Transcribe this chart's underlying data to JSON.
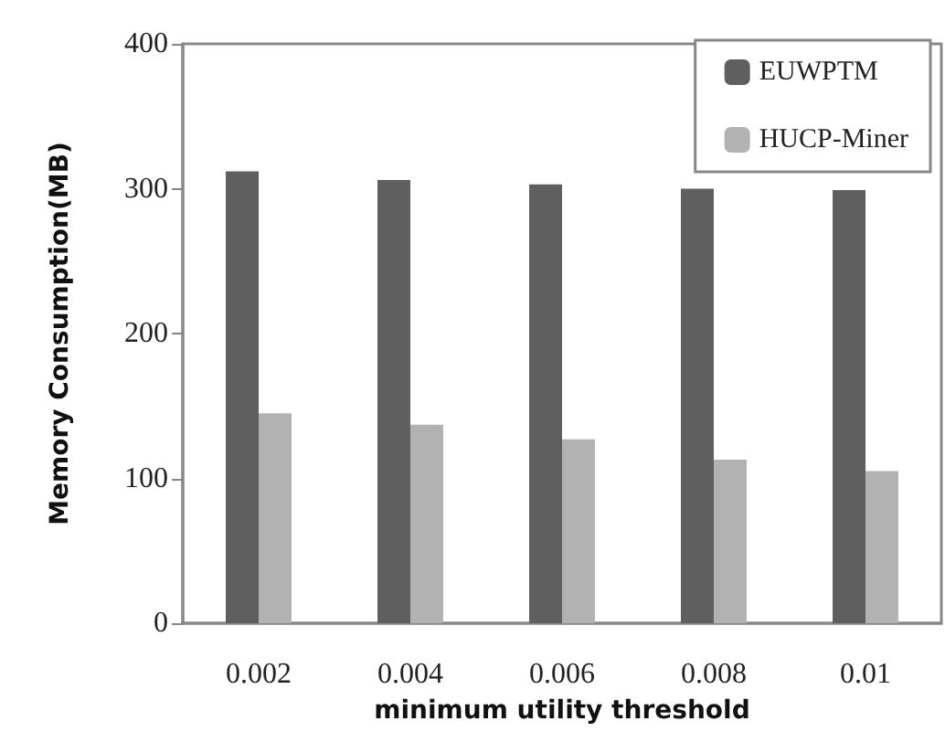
{
  "chart_data": {
    "type": "bar",
    "xlabel": "minimum utility threshold",
    "ylabel": "Memory Consumption(MB)",
    "categories": [
      "0.002",
      "0.004",
      "0.006",
      "0.008",
      "0.01"
    ],
    "series": [
      {
        "name": "EUWPTM",
        "color": "#5f5f5f",
        "values": [
          312,
          306,
          303,
          300,
          299
        ]
      },
      {
        "name": "HUCP-Miner",
        "color": "#b2b2b2",
        "values": [
          145,
          137,
          127,
          113,
          105
        ]
      }
    ],
    "ylim": [
      0,
      400
    ],
    "yticks": [
      0,
      100,
      200,
      300,
      400
    ],
    "grid": false,
    "legend": "top right"
  }
}
